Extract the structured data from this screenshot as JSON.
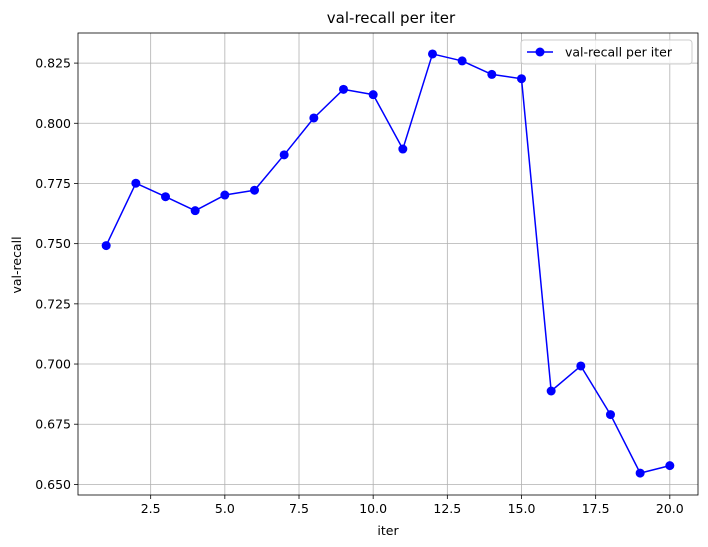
{
  "chart_data": {
    "type": "line",
    "title": "val-recall per iter",
    "xlabel": "iter",
    "ylabel": "val-recall",
    "xlim": [
      0.05,
      20.95
    ],
    "ylim": [
      0.6456,
      0.8375
    ],
    "grid": true,
    "legend_position": "top-right",
    "x_ticks": [
      2.5,
      5.0,
      7.5,
      10.0,
      12.5,
      15.0,
      17.5,
      20.0
    ],
    "x_tick_labels": [
      "2.5",
      "5.0",
      "7.5",
      "10.0",
      "12.5",
      "15.0",
      "17.5",
      "20.0"
    ],
    "y_ticks": [
      0.65,
      0.675,
      0.7,
      0.725,
      0.75,
      0.775,
      0.8,
      0.825
    ],
    "y_tick_labels": [
      "0.650",
      "0.675",
      "0.700",
      "0.725",
      "0.750",
      "0.775",
      "0.800",
      "0.825"
    ],
    "series": [
      {
        "name": "val-recall per iter",
        "color": "#0000ff",
        "marker": "circle",
        "x": [
          1,
          2,
          3,
          4,
          5,
          6,
          7,
          8,
          9,
          10,
          11,
          12,
          13,
          14,
          15,
          16,
          17,
          18,
          19,
          20
        ],
        "values": [
          0.7492,
          0.7751,
          0.7695,
          0.7637,
          0.7702,
          0.7722,
          0.7869,
          0.8022,
          0.8141,
          0.8119,
          0.7893,
          0.8288,
          0.8259,
          0.8203,
          0.8185,
          0.6888,
          0.6992,
          0.679,
          0.6547,
          0.6578
        ]
      }
    ]
  }
}
